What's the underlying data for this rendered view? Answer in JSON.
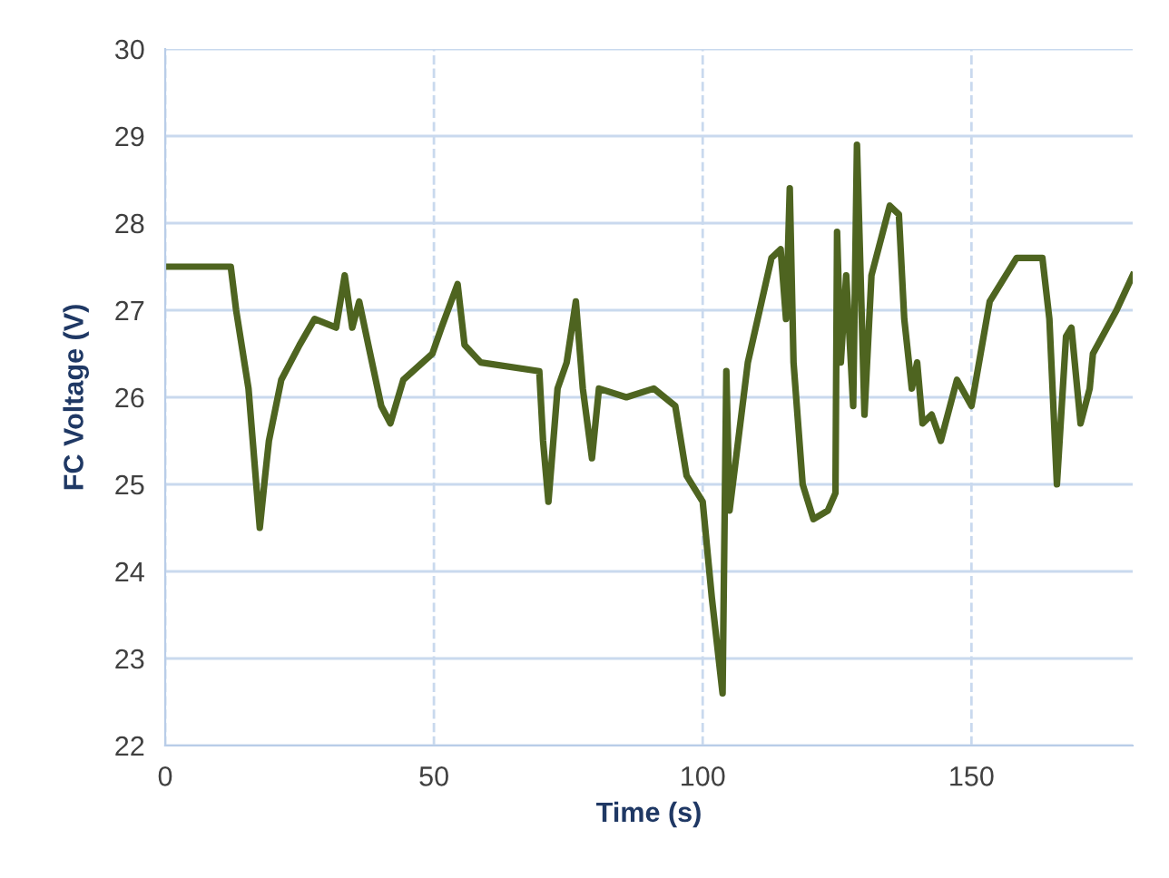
{
  "chart_data": {
    "type": "line",
    "xlabel": "Time (s)",
    "ylabel": "FC Voltage (V)",
    "xlim": [
      0,
      180
    ],
    "xticks": [
      0,
      50,
      100,
      150
    ],
    "ylim": [
      22,
      30
    ],
    "yticks": [
      22,
      23,
      24,
      25,
      26,
      27,
      28,
      29,
      30
    ],
    "grid": true,
    "series": [
      {
        "color": "#4e6420",
        "x": [
          0,
          12.2,
          13.2,
          15.5,
          17.6,
          18.6,
          19.3,
          21.6,
          25,
          27.8,
          31.8,
          33.4,
          34.8,
          36.1,
          37.8,
          40.2,
          41.9,
          44.3,
          49.7,
          51.4,
          54.4,
          55.7,
          58.7,
          69.6,
          70.3,
          71.3,
          73,
          74.7,
          76.4,
          77.7,
          79.4,
          80.7,
          85.8,
          90.9,
          94.9,
          97,
          100,
          101.7,
          103.7,
          104.4,
          105,
          108.4,
          112.8,
          114.5,
          115.5,
          116.2,
          116.9,
          118.6,
          120.6,
          123.3,
          124.7,
          125,
          125.7,
          126.7,
          128,
          128.7,
          130.1,
          131.4,
          134.8,
          136.5,
          137.5,
          138.9,
          139.9,
          140.9,
          142.6,
          144.3,
          147.3,
          150,
          153.4,
          158.4,
          163.2,
          164.5,
          165.9,
          167.6,
          168.6,
          170.3,
          172,
          172.6,
          177,
          180
        ],
        "values": [
          27.5,
          27.5,
          27.0,
          26.1,
          24.5,
          25.1,
          25.5,
          26.2,
          26.6,
          26.9,
          26.8,
          27.4,
          26.8,
          27.1,
          26.6,
          25.9,
          25.7,
          26.2,
          26.5,
          26.8,
          27.3,
          26.6,
          26.4,
          26.3,
          25.5,
          24.8,
          26.1,
          26.4,
          27.1,
          26.1,
          25.3,
          26.1,
          26.0,
          26.1,
          25.9,
          25.1,
          24.8,
          23.7,
          22.6,
          26.3,
          24.7,
          26.4,
          27.6,
          27.7,
          26.9,
          28.4,
          26.4,
          25.0,
          24.6,
          24.7,
          24.9,
          27.9,
          26.4,
          27.4,
          25.9,
          28.9,
          25.8,
          27.4,
          28.2,
          28.1,
          26.9,
          26.1,
          26.4,
          25.7,
          25.8,
          25.5,
          26.2,
          25.9,
          27.1,
          27.6,
          27.6,
          26.9,
          25.0,
          26.7,
          26.8,
          25.7,
          26.1,
          26.5,
          27.0,
          27.4
        ]
      }
    ]
  }
}
